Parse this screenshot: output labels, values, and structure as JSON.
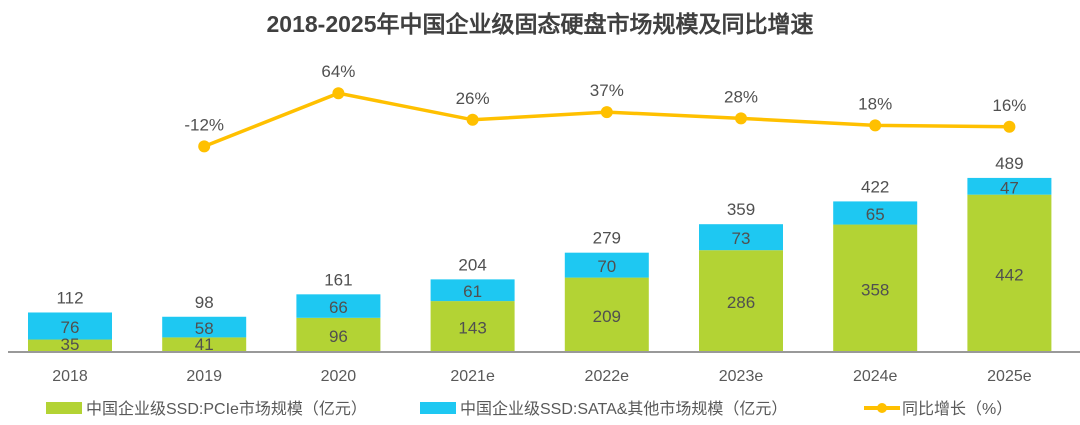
{
  "chart_data": {
    "type": "bar",
    "title": "2018-2025年中国企业级固态硬盘市场规模及同比增速",
    "categories": [
      "2018",
      "2019",
      "2020",
      "2021e",
      "2022e",
      "2023e",
      "2024e",
      "2025e"
    ],
    "series": [
      {
        "name": "中国企业级SSD:PCIe市场规模（亿元）",
        "type": "bar",
        "stack": "total",
        "color": "#b3d334",
        "values": [
          35,
          41,
          96,
          143,
          209,
          286,
          358,
          442
        ]
      },
      {
        "name": "中国企业级SSD:SATA&其他市场规模（亿元）",
        "type": "bar",
        "stack": "total",
        "color": "#1ec8f2",
        "values": [
          76,
          58,
          66,
          61,
          70,
          73,
          65,
          47
        ]
      },
      {
        "name": "同比增长（%）",
        "type": "line",
        "color": "#ffc000",
        "values": [
          null,
          -12,
          64,
          26,
          37,
          28,
          18,
          16
        ],
        "labels": [
          "",
          "-12%",
          "64%",
          "26%",
          "37%",
          "28%",
          "18%",
          "16%"
        ]
      }
    ],
    "totals": [
      112,
      98,
      161,
      204,
      279,
      359,
      422,
      489
    ],
    "legend": "bottom",
    "grid": false
  }
}
